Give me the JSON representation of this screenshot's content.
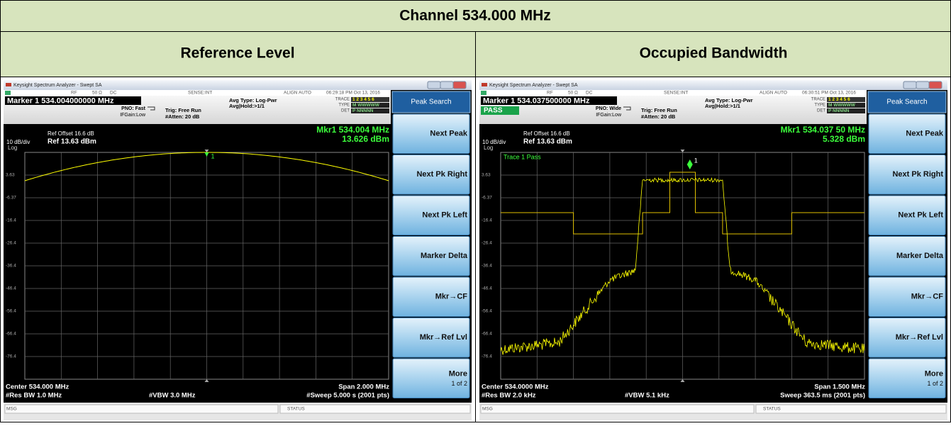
{
  "header": {
    "title": "Channel 534.000 MHz"
  },
  "panels": [
    {
      "heading": "Reference Level",
      "window_title": "Keysight Spectrum Analyzer - Swept SA",
      "status": [
        "RF",
        "50 Ω",
        "DC",
        "SENSE:INT",
        "ALIGN AUTO",
        "06:29:18 PM Oct 13, 2016"
      ],
      "marker": "Marker 1 534.004000000 MHz",
      "pno": "PNO: Fast",
      "ifgain": "IFGain:Low",
      "trig": "Trig: Free Run",
      "atten": "#Atten: 20 dB",
      "avg_type": "Avg Type: Log-Pwr",
      "avg_hold": "Avg|Hold:>1/1",
      "trace_labels": [
        "TRACE",
        "TYPE",
        "DET"
      ],
      "trace_values": [
        "1 2 3 4 5 6",
        "M WWWWW",
        "P NNNNN"
      ],
      "ref_offset": "Ref Offset 16.6 dB",
      "scale": "10 dB/div",
      "ref": "Ref 13.63 dBm",
      "log": "Log",
      "mkr_readout": "Mkr1 534.004 MHz",
      "mkr_value": "13.626 dBm",
      "marker_label": "1",
      "y_labels": [
        "3.63",
        "-6.37",
        "-16.4",
        "-26.4",
        "-36.4",
        "-46.4",
        "-56.4",
        "-66.4",
        "-76.4"
      ],
      "center": "Center 534.000 MHz",
      "span": "Span 2.000 MHz",
      "rbw": "#Res BW 1.0 MHz",
      "vbw": "#VBW 3.0 MHz",
      "sweep": "#Sweep  5.000 s (2001 pts)",
      "msg": "MSG",
      "status_label": "STATUS",
      "softkey_title": "Peak Search",
      "softkeys": [
        "Next Peak",
        "Next Pk Right",
        "Next Pk Left",
        "Marker Delta",
        "Mkr→CF",
        "Mkr→Ref Lvl",
        "More"
      ],
      "softkey_page": "1 of 2"
    },
    {
      "heading": "Occupied Bandwidth",
      "window_title": "Keysight Spectrum Analyzer - Swept SA",
      "status": [
        "RF",
        "50 Ω",
        "DC",
        "SENSE:INT",
        "ALIGN AUTO",
        "06:30:51 PM Oct 13, 2016"
      ],
      "marker": "Marker 1 534.037500000 MHz",
      "pno": "PNO: Wide",
      "ifgain": "IFGain:Low",
      "trig": "Trig: Free Run",
      "atten": "#Atten: 20 dB",
      "avg_type": "Avg Type: Log-Pwr",
      "avg_hold": "Avg|Hold:>1/1",
      "trace_labels": [
        "TRACE",
        "TYPE",
        "DET"
      ],
      "trace_values": [
        "1 2 3 4 5 6",
        "M WWWWW",
        "P NNNNN"
      ],
      "pass": "PASS",
      "ref_offset": "Ref Offset 16.6 dB",
      "scale": "10 dB/div",
      "ref": "Ref 13.63 dBm",
      "log": "Log",
      "mkr_readout": "Mkr1 534.037 50 MHz",
      "mkr_value": "5.328 dBm",
      "marker_label": "1",
      "trace_note": "Trace 1 Pass",
      "y_labels": [
        "3.63",
        "-6.37",
        "-16.4",
        "-26.4",
        "-36.4",
        "-46.4",
        "-56.4",
        "-66.4",
        "-76.4"
      ],
      "center": "Center 534.0000 MHz",
      "span": "Span 1.500 MHz",
      "rbw": "#Res BW 2.0 kHz",
      "vbw": "#VBW 5.1 kHz",
      "sweep": "Sweep  363.5 ms (2001 pts)",
      "msg": "MSG",
      "status_label": "STATUS",
      "softkey_title": "Peak Search",
      "softkeys": [
        "Next Peak",
        "Next Pk Right",
        "Next Pk Left",
        "Marker Delta",
        "Mkr→CF",
        "Mkr→Ref Lvl",
        "More"
      ],
      "softkey_page": "1 of 2"
    }
  ]
}
